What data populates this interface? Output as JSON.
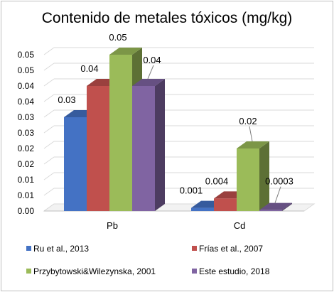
{
  "chart_data": {
    "type": "bar",
    "title": "Contenido de metales tóxicos (mg/kg)",
    "categories": [
      "Pb",
      "Cd"
    ],
    "series": [
      {
        "name": "Ru et al., 2013",
        "color": "#4472c4",
        "values": [
          0.03,
          0.001
        ],
        "labels": [
          "0.03",
          "0.001"
        ]
      },
      {
        "name": "Frías et al., 2007",
        "color": "#c0504d",
        "values": [
          0.04,
          0.004
        ],
        "labels": [
          "0.04",
          "0.004"
        ]
      },
      {
        "name": "Przybytowski&Wilezynska, 2001",
        "color": "#9bbb59",
        "values": [
          0.05,
          0.02
        ],
        "labels": [
          "0.05",
          "0.02"
        ]
      },
      {
        "name": "Este estudio, 2018",
        "color": "#8064a2",
        "values": [
          0.04,
          0.0003
        ],
        "labels": [
          "0.04",
          "0.0003"
        ]
      }
    ],
    "y_ticks": [
      "0.00",
      "0.01",
      "0.01",
      "0.02",
      "0.02",
      "0.03",
      "0.03",
      "0.04",
      "0.04",
      "0.05",
      "0.05"
    ],
    "ylim": [
      0,
      0.05
    ],
    "grid": true,
    "legend_position": "bottom",
    "style": "3d-clustered-column"
  }
}
